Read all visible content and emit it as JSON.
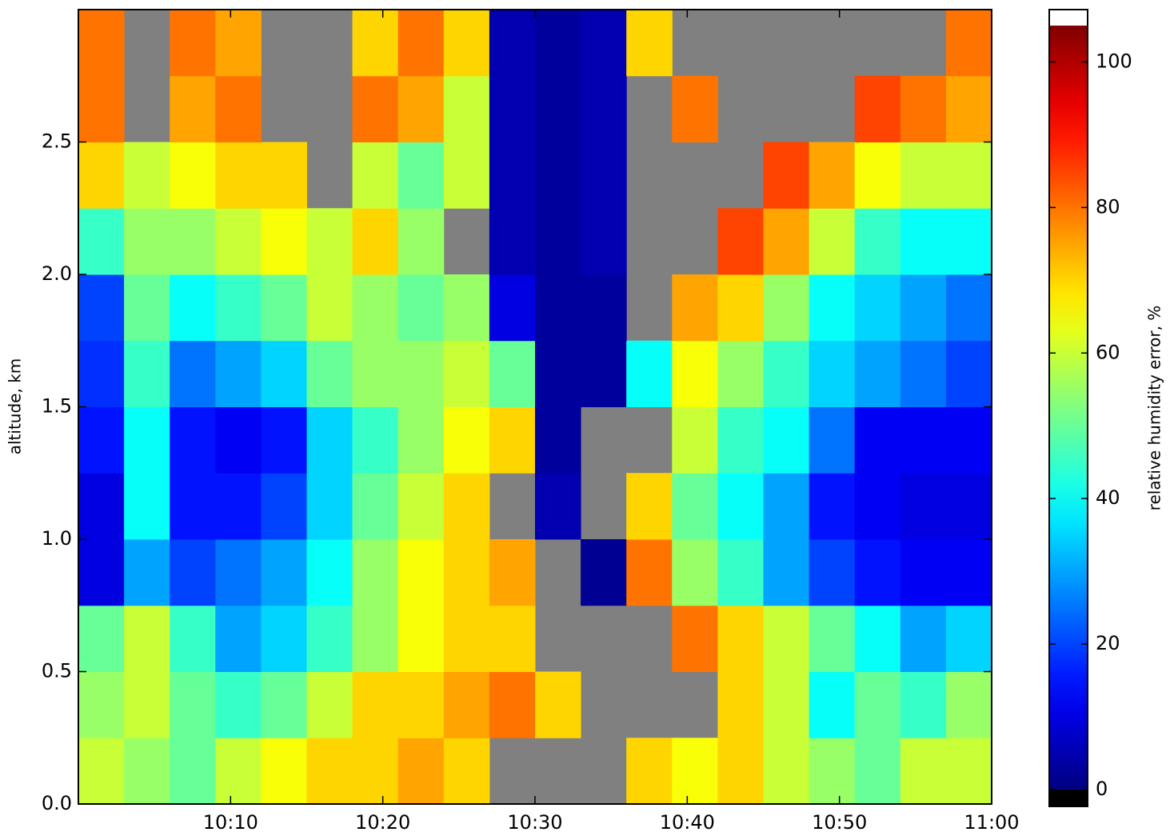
{
  "chart_data": {
    "type": "heatmap",
    "ylabel": "altitude, km",
    "x": [
      "10:00",
      "10:03",
      "10:06",
      "10:09",
      "10:12",
      "10:15",
      "10:18",
      "10:21",
      "10:24",
      "10:27",
      "10:30",
      "10:33",
      "10:36",
      "10:39",
      "10:42",
      "10:45",
      "10:48",
      "10:51",
      "10:54",
      "10:57",
      "11:00"
    ],
    "y": [
      0,
      0.25,
      0.5,
      0.75,
      1,
      1.25,
      1.5,
      1.75,
      2,
      2.25,
      2.5,
      2.75,
      3
    ],
    "values": [
      [
        60,
        55,
        50,
        60,
        65,
        70,
        70,
        75,
        70,
        null,
        null,
        null,
        70,
        65,
        70,
        60,
        55,
        50,
        60,
        60
      ],
      [
        55,
        60,
        50,
        45,
        50,
        60,
        70,
        70,
        75,
        80,
        70,
        null,
        null,
        null,
        70,
        60,
        40,
        50,
        45,
        55
      ],
      [
        50,
        60,
        45,
        30,
        35,
        45,
        55,
        65,
        70,
        70,
        null,
        null,
        null,
        80,
        70,
        60,
        50,
        40,
        30,
        35
      ],
      [
        10,
        30,
        20,
        25,
        30,
        40,
        55,
        65,
        70,
        75,
        null,
        2,
        80,
        55,
        45,
        30,
        20,
        15,
        12,
        12
      ],
      [
        10,
        40,
        15,
        15,
        20,
        35,
        50,
        60,
        70,
        null,
        5,
        null,
        70,
        50,
        40,
        30,
        15,
        12,
        10,
        10
      ],
      [
        15,
        40,
        15,
        12,
        15,
        35,
        45,
        55,
        65,
        70,
        3,
        null,
        null,
        60,
        45,
        40,
        25,
        12,
        12,
        12
      ],
      [
        18,
        45,
        25,
        30,
        35,
        50,
        55,
        55,
        60,
        50,
        3,
        3,
        40,
        65,
        55,
        45,
        35,
        30,
        25,
        20
      ],
      [
        20,
        50,
        40,
        45,
        50,
        60,
        55,
        50,
        55,
        10,
        3,
        3,
        null,
        75,
        70,
        55,
        40,
        35,
        30,
        25
      ],
      [
        45,
        55,
        55,
        60,
        65,
        60,
        70,
        55,
        null,
        5,
        3,
        5,
        null,
        null,
        85,
        75,
        60,
        45,
        40,
        40
      ],
      [
        70,
        60,
        65,
        70,
        70,
        null,
        60,
        50,
        60,
        5,
        3,
        5,
        null,
        null,
        null,
        85,
        75,
        65,
        60,
        60
      ],
      [
        80,
        null,
        75,
        80,
        null,
        null,
        80,
        75,
        60,
        5,
        3,
        5,
        null,
        80,
        null,
        null,
        null,
        85,
        80,
        75
      ],
      [
        80,
        null,
        80,
        75,
        null,
        null,
        70,
        80,
        70,
        5,
        3,
        5,
        70,
        null,
        null,
        null,
        null,
        null,
        null,
        80
      ]
    ],
    "missing_color": "#808080",
    "xlim": [
      "10:00",
      "11:00"
    ],
    "xticks": [
      "10:10",
      "10:20",
      "10:30",
      "10:40",
      "10:50",
      "11:00"
    ],
    "ylim": [
      0,
      3
    ],
    "yticks": [
      {
        "value": 0,
        "label": "0.0"
      },
      0.5,
      {
        "value": 1,
        "label": "1.0"
      },
      1.5,
      {
        "value": 2,
        "label": "2.0"
      },
      2.5
    ],
    "colorbar": {
      "label": "relative humidity error, %",
      "colormap": "jet",
      "lim": [
        0,
        105
      ],
      "ticks": [
        0,
        20,
        40,
        60,
        80,
        100
      ],
      "under_color": "#000000",
      "over_color": "#ffffff"
    }
  }
}
